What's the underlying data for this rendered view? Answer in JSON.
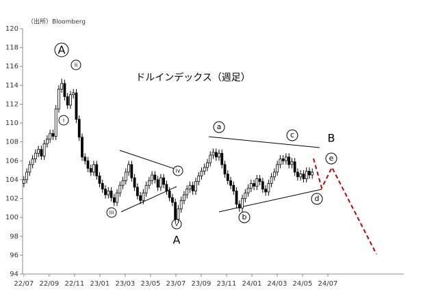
{
  "chart_data": {
    "type": "candlestick",
    "title": "ドルインデックス（週足）",
    "source": "（出所）Bloomberg",
    "annotations": [
      "A",
      "i",
      "ii",
      "iii",
      "iv",
      "v",
      "A",
      "a",
      "b",
      "c",
      "d",
      "e",
      "B"
    ],
    "x": [
      0,
      0.23,
      0.46,
      0.69,
      0.92,
      1.15,
      1.38,
      1.61,
      1.84,
      2.07,
      2.3,
      2.53,
      2.76,
      2.99,
      3.22,
      3.45,
      3.68,
      3.91,
      4.14,
      4.37,
      4.6,
      4.83,
      5.06,
      5.29,
      5.52,
      5.75,
      5.98,
      6.21,
      6.44,
      6.67,
      6.9,
      7.13,
      7.36,
      7.59,
      7.82,
      8.05,
      8.28,
      8.51,
      8.74,
      8.97,
      9.2,
      9.43,
      9.66,
      9.89,
      10.12,
      10.35,
      10.58,
      10.81,
      11.04,
      11.27,
      11.5,
      11.73,
      11.96,
      12.19,
      12.42,
      12.65,
      12.88,
      13.11,
      13.34,
      13.57,
      13.8,
      14.03,
      14.26,
      14.49,
      14.72,
      14.95,
      15.18,
      15.41,
      15.64,
      15.87,
      16.1,
      16.33,
      16.56,
      16.79,
      17.02,
      17.25,
      17.48,
      17.71,
      17.94,
      18.17,
      18.4,
      18.63,
      18.86,
      19.09,
      19.32,
      19.55,
      19.78,
      20.01,
      20.24,
      20.47,
      20.7,
      20.93,
      21.16,
      21.39,
      21.62,
      21.85,
      22.08,
      22.31,
      22.54,
      22.77
    ],
    "open": [
      103.6,
      104.0,
      104.8,
      105.6,
      106.2,
      106.8,
      107.2,
      106.5,
      107.8,
      108.3,
      108.9,
      108.6,
      111.5,
      113.6,
      114.2,
      112.8,
      111.9,
      113.0,
      113.2,
      110.4,
      108.5,
      106.4,
      106.0,
      105.2,
      104.8,
      105.6,
      104.4,
      103.6,
      103.0,
      102.4,
      102.8,
      102.1,
      101.6,
      102.6,
      103.4,
      103.9,
      104.8,
      105.6,
      104.2,
      103.2,
      102.3,
      101.8,
      102.6,
      103.4,
      103.9,
      104.5,
      104.0,
      103.2,
      104.2,
      103.5,
      102.8,
      102.1,
      101.6,
      99.8,
      100.9,
      101.8,
      102.4,
      103.0,
      103.4,
      102.8,
      103.8,
      104.4,
      104.9,
      105.3,
      105.8,
      106.6,
      106.9,
      106.4,
      106.8,
      105.6,
      104.6,
      103.9,
      103.4,
      102.8,
      101.4,
      101.0,
      102.0,
      102.6,
      103.1,
      103.6,
      103.3,
      104.1,
      103.8,
      103.0,
      102.7,
      103.6,
      104.3,
      104.8,
      105.6,
      106.2,
      106.0,
      106.4,
      105.6,
      105.9,
      104.8,
      104.3,
      104.6,
      104.1,
      104.9,
      104.5
    ],
    "high": [
      104.4,
      105.2,
      106.0,
      106.6,
      107.2,
      107.6,
      107.6,
      108.2,
      108.7,
      109.3,
      109.3,
      111.9,
      114.0,
      114.7,
      114.6,
      113.2,
      113.4,
      113.6,
      113.6,
      110.8,
      108.9,
      106.8,
      106.4,
      105.6,
      106.0,
      106.0,
      104.8,
      104.0,
      103.4,
      103.2,
      103.2,
      102.5,
      103.0,
      103.8,
      104.3,
      105.2,
      106.0,
      106.0,
      104.6,
      103.6,
      102.7,
      103.0,
      103.8,
      104.3,
      104.9,
      104.9,
      104.4,
      104.6,
      104.6,
      103.9,
      103.2,
      102.5,
      102.0,
      101.3,
      102.2,
      102.8,
      103.4,
      103.8,
      103.8,
      104.2,
      104.8,
      105.3,
      105.7,
      106.2,
      107.0,
      107.3,
      107.3,
      107.2,
      107.2,
      106.0,
      105.0,
      104.3,
      103.8,
      103.2,
      101.8,
      102.4,
      103.0,
      103.5,
      104.0,
      104.0,
      104.5,
      104.5,
      104.2,
      103.4,
      104.0,
      104.7,
      105.2,
      106.0,
      106.6,
      106.6,
      106.8,
      106.8,
      106.3,
      106.3,
      105.2,
      105.0,
      105.0,
      105.3,
      105.3,
      105.2
    ],
    "low": [
      103.2,
      103.6,
      104.4,
      105.2,
      105.8,
      106.4,
      106.1,
      106.1,
      107.4,
      107.9,
      108.2,
      108.2,
      111.1,
      113.2,
      112.4,
      111.5,
      111.5,
      112.6,
      110.0,
      108.1,
      106.0,
      105.6,
      104.8,
      104.4,
      104.4,
      104.0,
      103.2,
      102.6,
      102.0,
      102.0,
      101.7,
      101.2,
      101.2,
      102.2,
      103.0,
      103.5,
      104.4,
      103.8,
      102.8,
      101.9,
      101.4,
      101.4,
      102.2,
      103.0,
      103.5,
      103.6,
      102.8,
      102.8,
      103.1,
      102.4,
      101.7,
      101.2,
      99.4,
      99.4,
      100.5,
      101.4,
      102.0,
      102.6,
      102.4,
      102.4,
      103.4,
      104.0,
      104.5,
      104.9,
      105.4,
      106.2,
      106.0,
      106.0,
      105.2,
      104.2,
      103.5,
      103.0,
      102.4,
      101.0,
      100.6,
      100.6,
      101.6,
      102.2,
      102.7,
      102.9,
      102.9,
      103.4,
      102.6,
      102.3,
      102.3,
      103.2,
      103.9,
      104.4,
      105.2,
      105.6,
      105.6,
      105.2,
      105.2,
      104.4,
      103.9,
      103.9,
      103.7,
      103.7,
      104.1,
      104.1
    ],
    "close": [
      104.0,
      104.8,
      105.6,
      106.2,
      106.8,
      107.2,
      106.5,
      107.8,
      108.3,
      108.9,
      108.6,
      111.5,
      113.6,
      114.2,
      112.8,
      111.9,
      113.0,
      113.2,
      110.4,
      108.5,
      106.4,
      106.0,
      105.2,
      104.8,
      105.6,
      104.4,
      103.6,
      103.0,
      102.4,
      102.8,
      102.1,
      101.6,
      102.6,
      103.4,
      103.9,
      104.8,
      105.6,
      104.2,
      103.2,
      102.3,
      101.8,
      102.6,
      103.4,
      103.9,
      104.5,
      104.0,
      103.2,
      104.2,
      103.5,
      102.8,
      102.1,
      101.6,
      99.8,
      100.9,
      101.8,
      102.4,
      103.0,
      103.4,
      102.8,
      103.8,
      104.4,
      104.9,
      105.3,
      105.8,
      106.6,
      106.9,
      106.4,
      106.8,
      105.6,
      104.6,
      103.9,
      103.4,
      102.8,
      101.4,
      101.0,
      102.0,
      102.6,
      103.1,
      103.6,
      103.3,
      104.1,
      103.8,
      103.0,
      102.7,
      103.6,
      104.3,
      104.8,
      105.6,
      106.2,
      106.0,
      106.4,
      105.6,
      105.9,
      104.8,
      104.3,
      104.6,
      104.1,
      104.9,
      104.5,
      104.8
    ],
    "up_color": "#ffffff",
    "down_color": "#000000",
    "xlim": [
      -0.1,
      30
    ],
    "xticks": [
      {
        "value": 0,
        "label": "22/07"
      },
      {
        "value": 2,
        "label": "22/09"
      },
      {
        "value": 4,
        "label": "22/11"
      },
      {
        "value": 6,
        "label": "23/01"
      },
      {
        "value": 8,
        "label": "23/03"
      },
      {
        "value": 10,
        "label": "23/05"
      },
      {
        "value": 12,
        "label": "23/07"
      },
      {
        "value": 14,
        "label": "23/09"
      },
      {
        "value": 16,
        "label": "23/11"
      },
      {
        "value": 18,
        "label": "24/01"
      },
      {
        "value": 20,
        "label": "24/03"
      },
      {
        "value": 22,
        "label": "24/05"
      },
      {
        "value": 24,
        "label": "24/07"
      }
    ],
    "ylim": [
      94,
      120
    ],
    "yticks": [
      94,
      96,
      98,
      100,
      102,
      104,
      106,
      108,
      110,
      112,
      114,
      116,
      118,
      120
    ],
    "grid": false
  }
}
